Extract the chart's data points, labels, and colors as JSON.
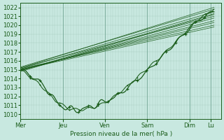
{
  "bg_color": "#c8e8e0",
  "plot_bg_color": "#c8e8e0",
  "line_color": "#1a5c1a",
  "marker_color": "#1a5c1a",
  "xlabel_text": "Pression niveau de la mer( hPa )",
  "x_tick_labels": [
    "Mer",
    "Jeu",
    "Ven",
    "Sam",
    "Dim",
    "Lu"
  ],
  "x_tick_positions": [
    0,
    48,
    96,
    144,
    192,
    216
  ],
  "ylim": [
    1009.5,
    1022.5
  ],
  "yticks": [
    1010,
    1011,
    1012,
    1013,
    1014,
    1015,
    1016,
    1017,
    1018,
    1019,
    1020,
    1021,
    1022
  ],
  "xlim": [
    0,
    228
  ],
  "total_hours": 228,
  "figsize": [
    3.2,
    2.0
  ],
  "dpi": 100
}
